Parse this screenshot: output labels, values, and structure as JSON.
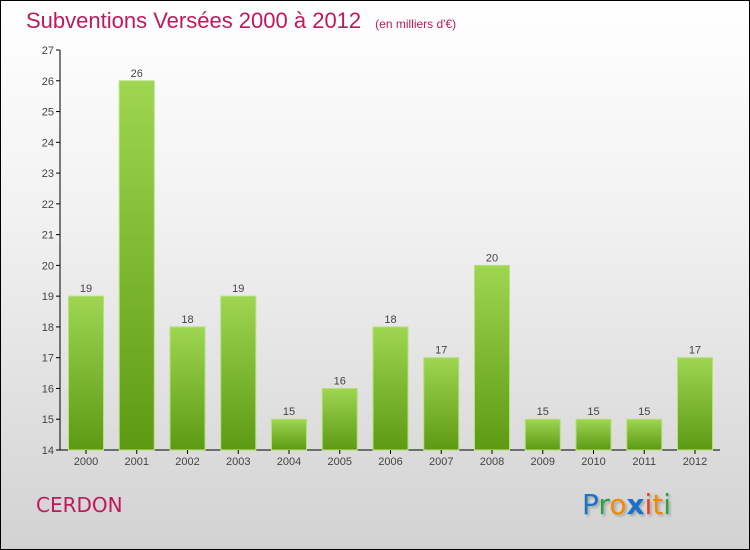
{
  "chart_data": {
    "type": "bar",
    "title": "Subventions Versées 2000 à 2012",
    "subtitle": "(en milliers d'€)",
    "categories": [
      "2000",
      "2001",
      "2002",
      "2003",
      "2004",
      "2005",
      "2006",
      "2007",
      "2008",
      "2009",
      "2010",
      "2011",
      "2012"
    ],
    "values": [
      19,
      26,
      18,
      19,
      15,
      16,
      18,
      17,
      20,
      15,
      15,
      15,
      17
    ],
    "ylim": [
      14,
      27
    ],
    "yticks": [
      14,
      15,
      16,
      17,
      18,
      19,
      20,
      21,
      22,
      23,
      24,
      25,
      26,
      27
    ],
    "xlabel": "",
    "ylabel": "",
    "grid": false,
    "bar_color": "#7cc233"
  },
  "commune": "CERDON",
  "logo": {
    "letters": [
      "P",
      "r",
      "o",
      "x",
      "i",
      "t",
      "i"
    ],
    "colors": [
      "#1a73c8",
      "#2ea043",
      "#f08a00",
      "#1a73c8",
      "#e8401c",
      "#f08a00",
      "#2ea043"
    ]
  }
}
